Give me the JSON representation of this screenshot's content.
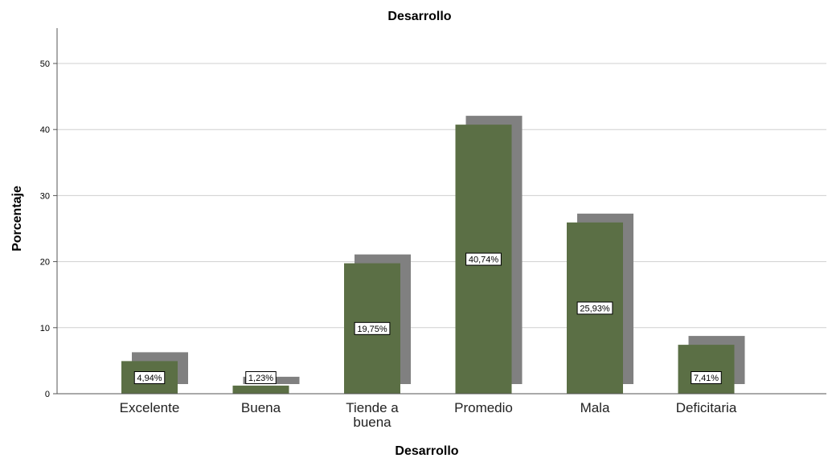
{
  "chart_data": {
    "type": "bar",
    "title": "Desarrollo",
    "xlabel": "Desarrollo",
    "ylabel": "Porcentaje",
    "categories": [
      [
        "Excelente"
      ],
      [
        "Buena"
      ],
      [
        "Tiende a",
        "buena"
      ],
      [
        "Promedio"
      ],
      [
        "Mala"
      ],
      [
        "Deficitaria"
      ]
    ],
    "values": [
      4.94,
      1.23,
      19.75,
      40.74,
      25.93,
      7.41
    ],
    "data_labels": [
      "4,94%",
      "1,23%",
      "19,75%",
      "40,74%",
      "25,93%",
      "7,41%"
    ],
    "yticks": [
      0,
      10,
      20,
      30,
      40,
      50
    ],
    "ylim": [
      0,
      55
    ],
    "grid": "horizontal",
    "colors": {
      "bar": "#5b6f45",
      "shadow": "#808080",
      "grid": "#cfcfcf",
      "axis": "#555555"
    }
  }
}
